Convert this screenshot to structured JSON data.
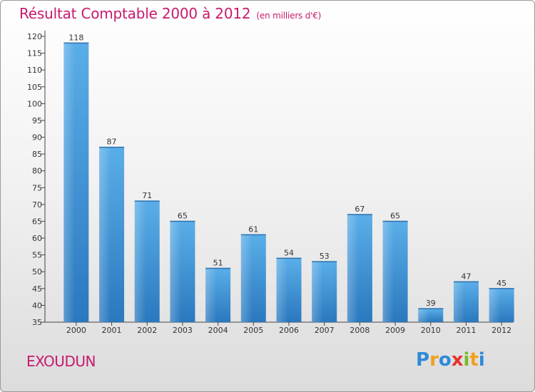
{
  "title": "Résultat Comptable 2000 à 2012",
  "subtitle": "(en milliers d'€)",
  "place": "EXOUDUN",
  "logo": {
    "letters": [
      "P",
      "r",
      "o",
      "x",
      "i",
      "t",
      "i"
    ],
    "colors": [
      "#2f8ad8",
      "#f0a01e",
      "#2f8ad8",
      "#e8332a",
      "#7ab829",
      "#f0a01e",
      "#2f8ad8"
    ]
  },
  "colors": {
    "accent": "#c8196e",
    "bar": "#3a95dc",
    "bar_dark": "#2a78be"
  },
  "chart_data": {
    "type": "bar",
    "title": "Résultat Comptable 2000 à 2012",
    "subtitle": "(en milliers d'€)",
    "categories": [
      "2000",
      "2001",
      "2002",
      "2003",
      "2004",
      "2005",
      "2006",
      "2007",
      "2008",
      "2009",
      "2010",
      "2011",
      "2012"
    ],
    "values": [
      118,
      87,
      71,
      65,
      51,
      61,
      54,
      53,
      67,
      65,
      39,
      47,
      45
    ],
    "ylim": [
      35,
      120
    ],
    "yticks": [
      35,
      40,
      45,
      50,
      55,
      60,
      65,
      70,
      75,
      80,
      85,
      90,
      95,
      100,
      105,
      110,
      115,
      120
    ],
    "grid": false
  }
}
